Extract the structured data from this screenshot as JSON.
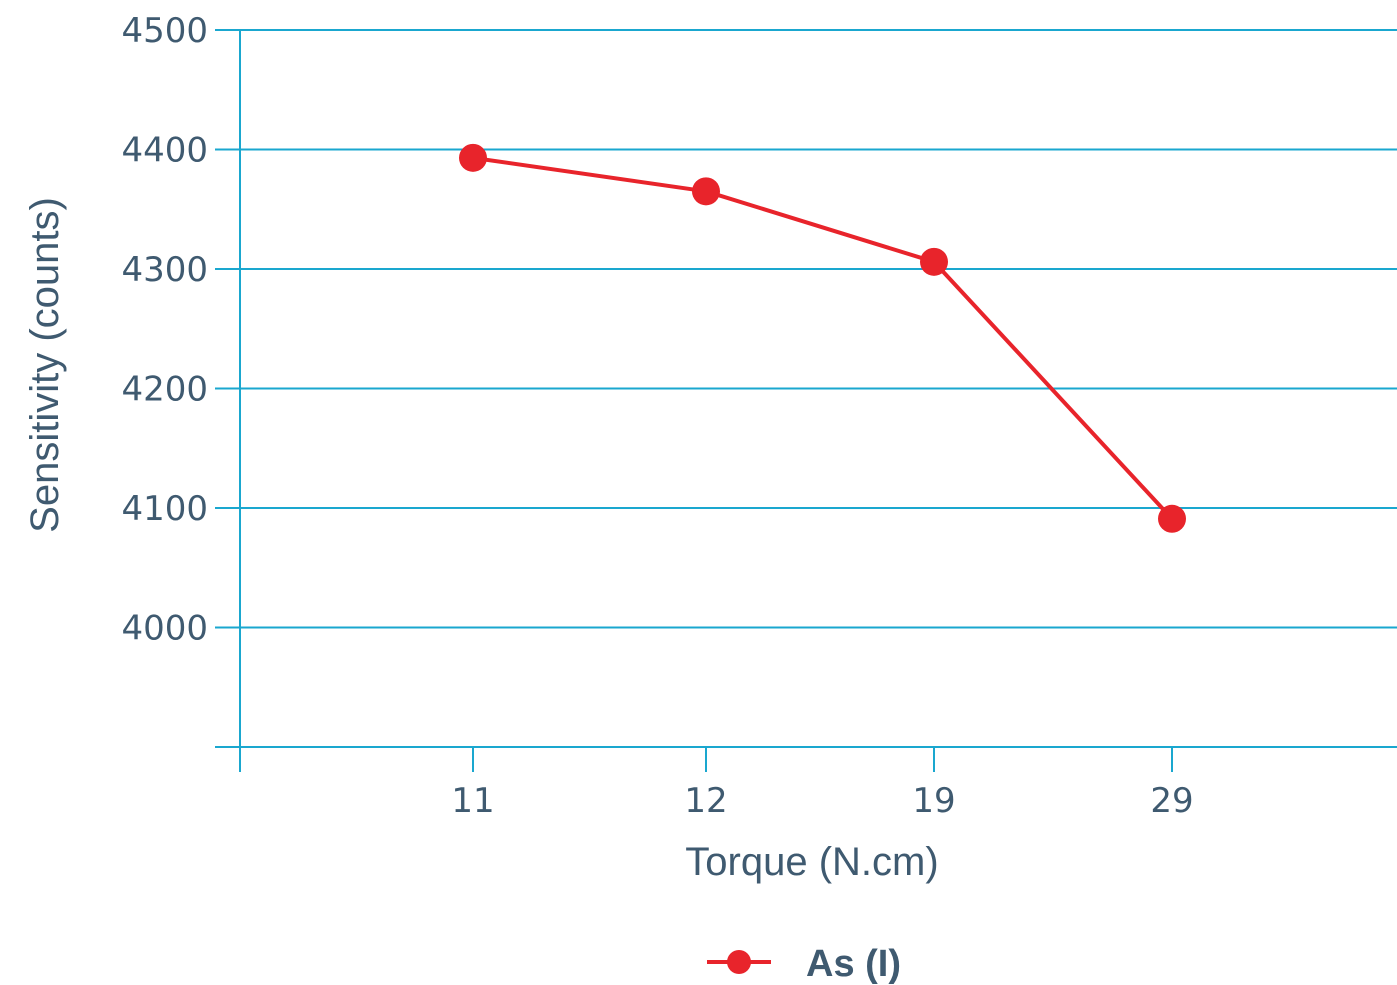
{
  "chart_data": {
    "type": "line",
    "title": "",
    "xlabel": "Torque (N.cm)",
    "ylabel": "Sensitivity (counts)",
    "categories": [
      "11",
      "12",
      "19",
      "29"
    ],
    "yticks": [
      "4000",
      "4100",
      "4200",
      "4300",
      "4400",
      "4500"
    ],
    "ylim": [
      3900,
      4500
    ],
    "grid": true,
    "legend_position": "bottom-center",
    "series": [
      {
        "name": "As (I)",
        "color": "#e8242b",
        "values": [
          4393,
          4365,
          4306,
          4091
        ]
      }
    ],
    "colors": {
      "axis": "#1aa7cf",
      "grid": "#1aa7cf",
      "text": "#3f5a70"
    }
  }
}
